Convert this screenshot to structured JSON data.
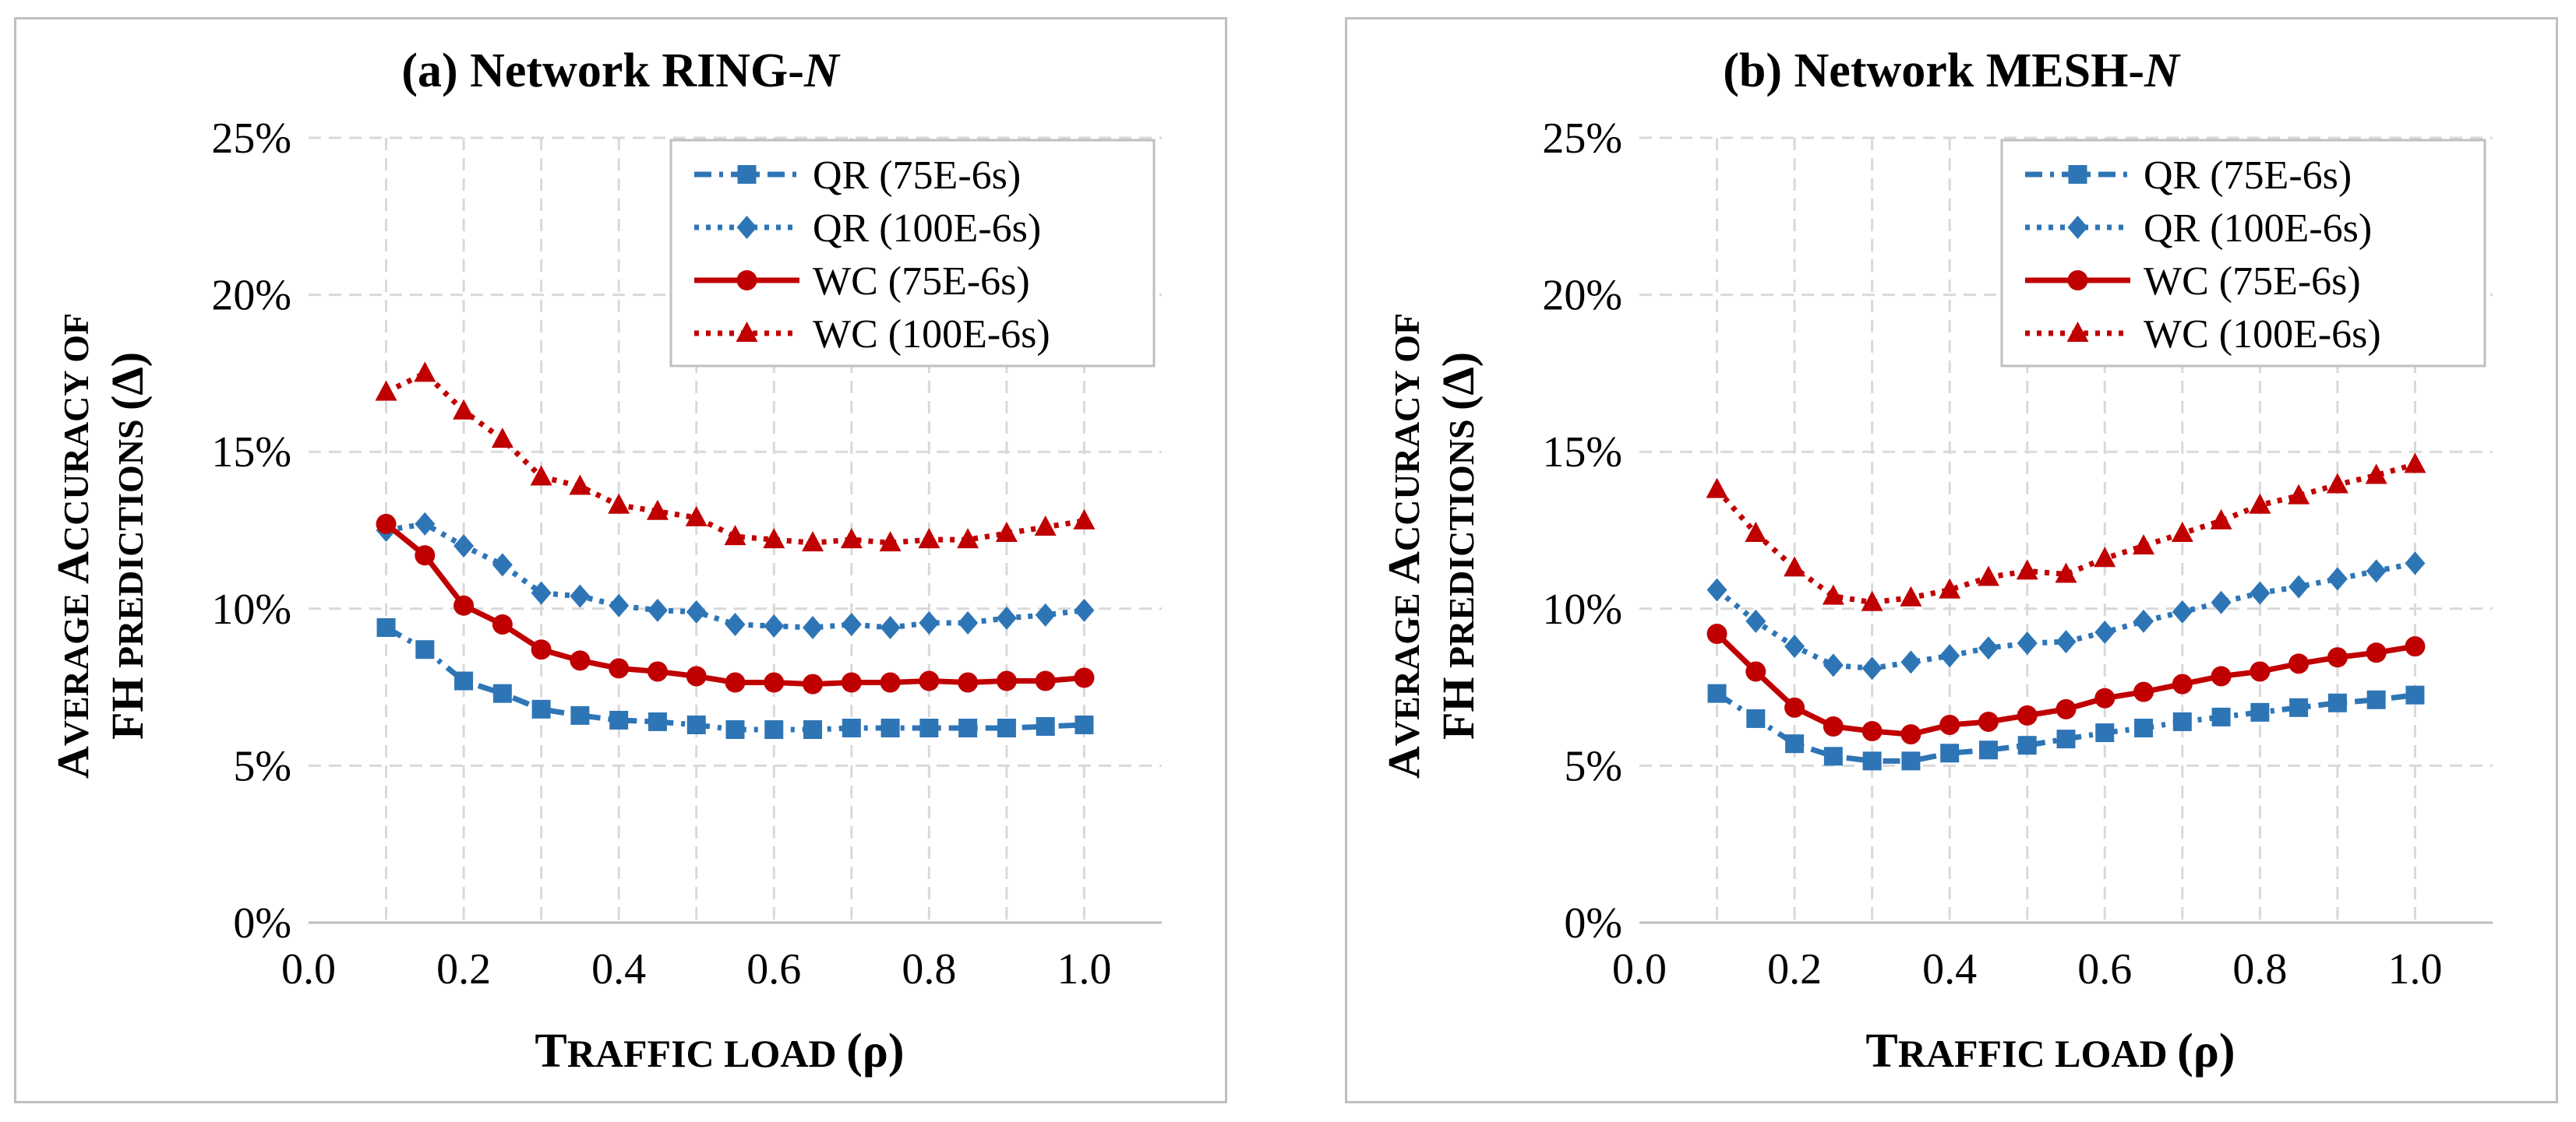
{
  "chart_data": [
    {
      "type": "line",
      "title_prefix": "(a) Network RING-",
      "title_italic": "N",
      "ylabel_line1": {
        "big1": "A",
        "small1": "VERAGE ",
        "big2": "A",
        "small2": "CCURACY OF"
      },
      "ylabel_line2": {
        "big1": "FH",
        "small1": " PREDICTIONS ",
        "big2": "(Δ)"
      },
      "xlabel": {
        "big1": "T",
        "small1": "RAFFIC LOAD ",
        "big2": "(ρ)"
      },
      "x": [
        0.1,
        0.15,
        0.2,
        0.25,
        0.3,
        0.35,
        0.4,
        0.45,
        0.5,
        0.55,
        0.6,
        0.65,
        0.7,
        0.75,
        0.8,
        0.85,
        0.9,
        0.95,
        1.0
      ],
      "xlim": [
        0.0,
        1.1
      ],
      "ylim": [
        0,
        25
      ],
      "xticks": [
        "0.0",
        "0.2",
        "0.4",
        "0.6",
        "0.8",
        "1.0"
      ],
      "xtick_values": [
        0.0,
        0.2,
        0.4,
        0.6,
        0.8,
        1.0
      ],
      "yticks": [
        "0%",
        "5%",
        "10%",
        "15%",
        "20%",
        "25%"
      ],
      "ytick_values": [
        0,
        5,
        10,
        15,
        20,
        25
      ],
      "legend_position": "top-right",
      "series": [
        {
          "name": "QR (75E-6s)",
          "color": "#2e75b6",
          "marker": "square",
          "line": "dash-dot",
          "values": [
            9.4,
            8.7,
            7.7,
            7.3,
            6.8,
            6.6,
            6.45,
            6.4,
            6.3,
            6.15,
            6.15,
            6.15,
            6.2,
            6.2,
            6.2,
            6.2,
            6.2,
            6.25,
            6.3
          ]
        },
        {
          "name": "QR (100E-6s)",
          "color": "#2e75b6",
          "marker": "diamond",
          "line": "dotted",
          "values": [
            12.5,
            12.7,
            12.0,
            11.4,
            10.5,
            10.4,
            10.1,
            9.95,
            9.9,
            9.5,
            9.45,
            9.4,
            9.5,
            9.4,
            9.55,
            9.55,
            9.7,
            9.8,
            9.95
          ]
        },
        {
          "name": "WC (75E-6s)",
          "color": "#c00000",
          "marker": "circle",
          "line": "solid",
          "values": [
            12.7,
            11.7,
            10.1,
            9.5,
            8.7,
            8.35,
            8.1,
            8.0,
            7.85,
            7.65,
            7.65,
            7.6,
            7.65,
            7.65,
            7.7,
            7.65,
            7.7,
            7.7,
            7.8
          ]
        },
        {
          "name": "WC (100E-6s)",
          "color": "#c00000",
          "marker": "triangle",
          "line": "dotted",
          "values": [
            16.9,
            17.5,
            16.3,
            15.4,
            14.2,
            13.9,
            13.3,
            13.1,
            12.9,
            12.3,
            12.2,
            12.1,
            12.2,
            12.1,
            12.2,
            12.2,
            12.4,
            12.6,
            12.8
          ]
        }
      ]
    },
    {
      "type": "line",
      "title_prefix": "(b) Network MESH-",
      "title_italic": "N",
      "ylabel_line1": {
        "big1": "A",
        "small1": "VERAGE ",
        "big2": "A",
        "small2": "CCURACY OF"
      },
      "ylabel_line2": {
        "big1": "FH",
        "small1": " PREDICTIONS ",
        "big2": "(Δ)"
      },
      "xlabel": {
        "big1": "T",
        "small1": "RAFFIC LOAD ",
        "big2": "(ρ)"
      },
      "x": [
        0.1,
        0.15,
        0.2,
        0.25,
        0.3,
        0.35,
        0.4,
        0.45,
        0.5,
        0.55,
        0.6,
        0.65,
        0.7,
        0.75,
        0.8,
        0.85,
        0.9,
        0.95,
        1.0
      ],
      "xlim": [
        0.0,
        1.1
      ],
      "ylim": [
        0,
        25
      ],
      "xticks": [
        "0.0",
        "0.2",
        "0.4",
        "0.6",
        "0.8",
        "1.0"
      ],
      "xtick_values": [
        0.0,
        0.2,
        0.4,
        0.6,
        0.8,
        1.0
      ],
      "yticks": [
        "0%",
        "5%",
        "10%",
        "15%",
        "20%",
        "25%"
      ],
      "ytick_values": [
        0,
        5,
        10,
        15,
        20,
        25
      ],
      "legend_position": "top-right",
      "series": [
        {
          "name": "QR (75E-6s)",
          "color": "#2e75b6",
          "marker": "square",
          "line": "dash-dot",
          "values": [
            7.3,
            6.5,
            5.7,
            5.3,
            5.15,
            5.15,
            5.4,
            5.5,
            5.65,
            5.85,
            6.05,
            6.2,
            6.4,
            6.55,
            6.7,
            6.85,
            7.0,
            7.1,
            7.25
          ]
        },
        {
          "name": "QR (100E-6s)",
          "color": "#2e75b6",
          "marker": "diamond",
          "line": "dotted",
          "values": [
            10.6,
            9.6,
            8.8,
            8.2,
            8.1,
            8.3,
            8.5,
            8.75,
            8.9,
            8.95,
            9.25,
            9.6,
            9.9,
            10.2,
            10.5,
            10.7,
            10.95,
            11.2,
            11.45
          ]
        },
        {
          "name": "WC (75E-6s)",
          "color": "#c00000",
          "marker": "circle",
          "line": "solid",
          "values": [
            9.2,
            8.0,
            6.85,
            6.25,
            6.1,
            6.0,
            6.3,
            6.4,
            6.6,
            6.8,
            7.15,
            7.35,
            7.6,
            7.85,
            8.0,
            8.25,
            8.45,
            8.6,
            8.8
          ]
        },
        {
          "name": "WC (100E-6s)",
          "color": "#c00000",
          "marker": "triangle",
          "line": "dotted",
          "values": [
            13.8,
            12.4,
            11.3,
            10.4,
            10.2,
            10.35,
            10.6,
            11.0,
            11.2,
            11.1,
            11.6,
            12.0,
            12.4,
            12.8,
            13.3,
            13.6,
            13.95,
            14.25,
            14.6
          ]
        }
      ]
    }
  ]
}
